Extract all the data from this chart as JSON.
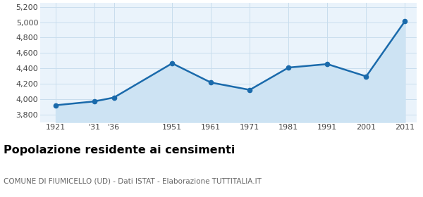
{
  "years": [
    1921,
    1931,
    1936,
    1951,
    1961,
    1971,
    1981,
    1991,
    2001,
    2011
  ],
  "population": [
    3920,
    3970,
    4020,
    4465,
    4215,
    4120,
    4410,
    4455,
    4295,
    5015
  ],
  "x_labels": [
    "1921",
    "'31",
    "'36",
    "1951",
    "1961",
    "1971",
    "1981",
    "1991",
    "2001",
    "2011"
  ],
  "line_color": "#1a6aab",
  "fill_color": "#cde3f3",
  "marker_size": 4.5,
  "line_width": 1.8,
  "ylim": [
    3700,
    5250
  ],
  "yticks": [
    3800,
    4000,
    4200,
    4400,
    4600,
    4800,
    5000,
    5200
  ],
  "grid_color": "#c8dded",
  "background_color": "#eaf3fb",
  "title": "Popolazione residente ai censimenti",
  "subtitle": "COMUNE DI FIUMICELLO (UD) - Dati ISTAT - Elaborazione TUTTITALIA.IT",
  "title_fontsize": 11.5,
  "subtitle_fontsize": 7.5,
  "tick_fontsize": 8,
  "xlim_left": 1917,
  "xlim_right": 2014
}
